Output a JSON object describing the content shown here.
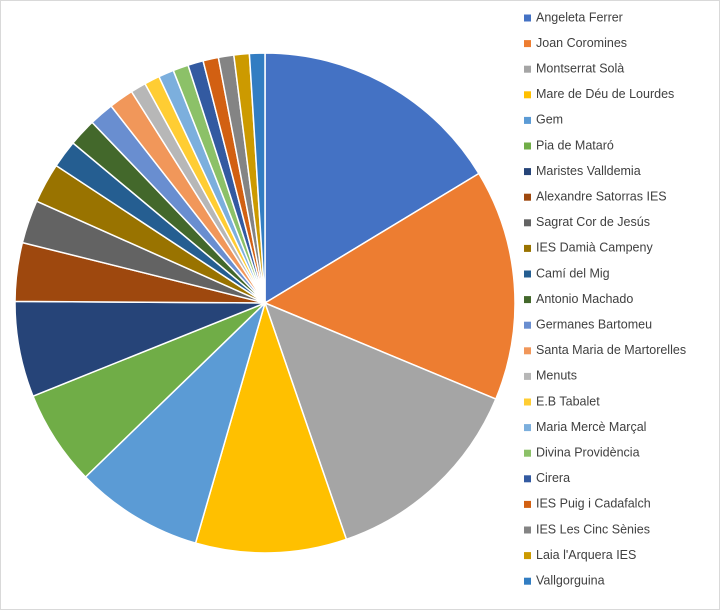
{
  "chart_data": {
    "type": "pie",
    "categories": [
      "Angeleta Ferrer",
      "Joan Coromines",
      "Montserrat Solà",
      "Mare de Déu de Lourdes",
      "Gem",
      "Pia de Mataró",
      "Maristes Valldemia",
      "Alexandre Satorras IES",
      "Sagrat Cor de Jesús",
      "IES Damià Campeny",
      "Camí del Mig",
      "Antonio Machado",
      "Germanes Bartomeu",
      "Santa Maria de Martorelles",
      "Menuts",
      "E.B Tabalet",
      "Maria Mercè Marçal",
      "Divina Providència",
      "Cirera",
      "IES Puig i Cadafalch",
      "IES Les Cinc Sènies",
      "Laia l'Arquera IES",
      "Vallgorguina"
    ],
    "values": [
      16.4,
      15,
      13.5,
      9.8,
      8.3,
      6.2,
      6.2,
      3.8,
      2.8,
      2.6,
      1.8,
      1.8,
      1.6,
      1.6,
      1,
      1,
      1,
      1,
      1,
      1,
      1,
      1,
      1
    ],
    "colors": [
      "#4472c4",
      "#ed7d31",
      "#a5a5a5",
      "#ffc000",
      "#5b9bd5",
      "#70ad47",
      "#264478",
      "#9e480e",
      "#636363",
      "#997300",
      "#255e91",
      "#43682b",
      "#698ed0",
      "#f1975a",
      "#b7b7b7",
      "#ffcd33",
      "#7cafdd",
      "#8cc168",
      "#335aa1",
      "#d26012",
      "#848484",
      "#cc9a00",
      "#327dc2"
    ],
    "legend": "right"
  }
}
